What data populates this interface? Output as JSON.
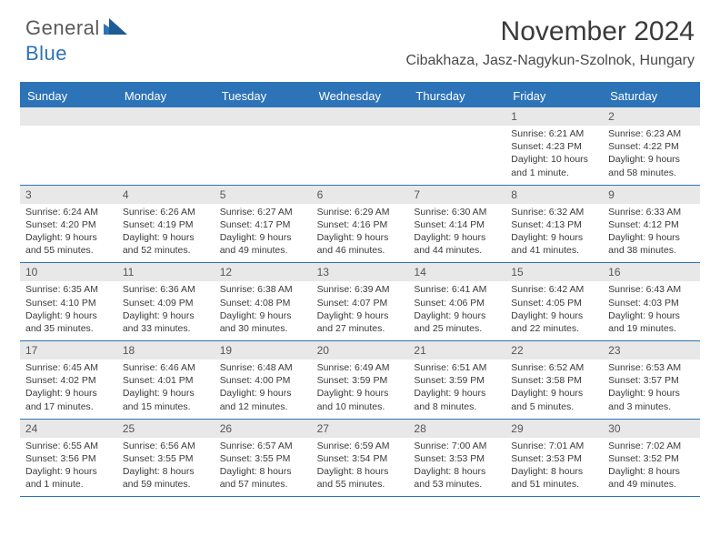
{
  "logo": {
    "text1": "General",
    "text2": "Blue"
  },
  "title": "November 2024",
  "location": "Cibakhaza, Jasz-Nagykun-Szolnok, Hungary",
  "colors": {
    "accent": "#2d73b8",
    "header_bg": "#2d73b8",
    "header_text": "#ffffff",
    "daynum_bg": "#e8e8e8",
    "daynum_text": "#555555",
    "body_text": "#3a3a3a",
    "page_bg": "#ffffff"
  },
  "day_names": [
    "Sunday",
    "Monday",
    "Tuesday",
    "Wednesday",
    "Thursday",
    "Friday",
    "Saturday"
  ],
  "weeks": [
    [
      {
        "day": "",
        "sunrise": "",
        "sunset": "",
        "daylight": ""
      },
      {
        "day": "",
        "sunrise": "",
        "sunset": "",
        "daylight": ""
      },
      {
        "day": "",
        "sunrise": "",
        "sunset": "",
        "daylight": ""
      },
      {
        "day": "",
        "sunrise": "",
        "sunset": "",
        "daylight": ""
      },
      {
        "day": "",
        "sunrise": "",
        "sunset": "",
        "daylight": ""
      },
      {
        "day": "1",
        "sunrise": "Sunrise: 6:21 AM",
        "sunset": "Sunset: 4:23 PM",
        "daylight": "Daylight: 10 hours and 1 minute."
      },
      {
        "day": "2",
        "sunrise": "Sunrise: 6:23 AM",
        "sunset": "Sunset: 4:22 PM",
        "daylight": "Daylight: 9 hours and 58 minutes."
      }
    ],
    [
      {
        "day": "3",
        "sunrise": "Sunrise: 6:24 AM",
        "sunset": "Sunset: 4:20 PM",
        "daylight": "Daylight: 9 hours and 55 minutes."
      },
      {
        "day": "4",
        "sunrise": "Sunrise: 6:26 AM",
        "sunset": "Sunset: 4:19 PM",
        "daylight": "Daylight: 9 hours and 52 minutes."
      },
      {
        "day": "5",
        "sunrise": "Sunrise: 6:27 AM",
        "sunset": "Sunset: 4:17 PM",
        "daylight": "Daylight: 9 hours and 49 minutes."
      },
      {
        "day": "6",
        "sunrise": "Sunrise: 6:29 AM",
        "sunset": "Sunset: 4:16 PM",
        "daylight": "Daylight: 9 hours and 46 minutes."
      },
      {
        "day": "7",
        "sunrise": "Sunrise: 6:30 AM",
        "sunset": "Sunset: 4:14 PM",
        "daylight": "Daylight: 9 hours and 44 minutes."
      },
      {
        "day": "8",
        "sunrise": "Sunrise: 6:32 AM",
        "sunset": "Sunset: 4:13 PM",
        "daylight": "Daylight: 9 hours and 41 minutes."
      },
      {
        "day": "9",
        "sunrise": "Sunrise: 6:33 AM",
        "sunset": "Sunset: 4:12 PM",
        "daylight": "Daylight: 9 hours and 38 minutes."
      }
    ],
    [
      {
        "day": "10",
        "sunrise": "Sunrise: 6:35 AM",
        "sunset": "Sunset: 4:10 PM",
        "daylight": "Daylight: 9 hours and 35 minutes."
      },
      {
        "day": "11",
        "sunrise": "Sunrise: 6:36 AM",
        "sunset": "Sunset: 4:09 PM",
        "daylight": "Daylight: 9 hours and 33 minutes."
      },
      {
        "day": "12",
        "sunrise": "Sunrise: 6:38 AM",
        "sunset": "Sunset: 4:08 PM",
        "daylight": "Daylight: 9 hours and 30 minutes."
      },
      {
        "day": "13",
        "sunrise": "Sunrise: 6:39 AM",
        "sunset": "Sunset: 4:07 PM",
        "daylight": "Daylight: 9 hours and 27 minutes."
      },
      {
        "day": "14",
        "sunrise": "Sunrise: 6:41 AM",
        "sunset": "Sunset: 4:06 PM",
        "daylight": "Daylight: 9 hours and 25 minutes."
      },
      {
        "day": "15",
        "sunrise": "Sunrise: 6:42 AM",
        "sunset": "Sunset: 4:05 PM",
        "daylight": "Daylight: 9 hours and 22 minutes."
      },
      {
        "day": "16",
        "sunrise": "Sunrise: 6:43 AM",
        "sunset": "Sunset: 4:03 PM",
        "daylight": "Daylight: 9 hours and 19 minutes."
      }
    ],
    [
      {
        "day": "17",
        "sunrise": "Sunrise: 6:45 AM",
        "sunset": "Sunset: 4:02 PM",
        "daylight": "Daylight: 9 hours and 17 minutes."
      },
      {
        "day": "18",
        "sunrise": "Sunrise: 6:46 AM",
        "sunset": "Sunset: 4:01 PM",
        "daylight": "Daylight: 9 hours and 15 minutes."
      },
      {
        "day": "19",
        "sunrise": "Sunrise: 6:48 AM",
        "sunset": "Sunset: 4:00 PM",
        "daylight": "Daylight: 9 hours and 12 minutes."
      },
      {
        "day": "20",
        "sunrise": "Sunrise: 6:49 AM",
        "sunset": "Sunset: 3:59 PM",
        "daylight": "Daylight: 9 hours and 10 minutes."
      },
      {
        "day": "21",
        "sunrise": "Sunrise: 6:51 AM",
        "sunset": "Sunset: 3:59 PM",
        "daylight": "Daylight: 9 hours and 8 minutes."
      },
      {
        "day": "22",
        "sunrise": "Sunrise: 6:52 AM",
        "sunset": "Sunset: 3:58 PM",
        "daylight": "Daylight: 9 hours and 5 minutes."
      },
      {
        "day": "23",
        "sunrise": "Sunrise: 6:53 AM",
        "sunset": "Sunset: 3:57 PM",
        "daylight": "Daylight: 9 hours and 3 minutes."
      }
    ],
    [
      {
        "day": "24",
        "sunrise": "Sunrise: 6:55 AM",
        "sunset": "Sunset: 3:56 PM",
        "daylight": "Daylight: 9 hours and 1 minute."
      },
      {
        "day": "25",
        "sunrise": "Sunrise: 6:56 AM",
        "sunset": "Sunset: 3:55 PM",
        "daylight": "Daylight: 8 hours and 59 minutes."
      },
      {
        "day": "26",
        "sunrise": "Sunrise: 6:57 AM",
        "sunset": "Sunset: 3:55 PM",
        "daylight": "Daylight: 8 hours and 57 minutes."
      },
      {
        "day": "27",
        "sunrise": "Sunrise: 6:59 AM",
        "sunset": "Sunset: 3:54 PM",
        "daylight": "Daylight: 8 hours and 55 minutes."
      },
      {
        "day": "28",
        "sunrise": "Sunrise: 7:00 AM",
        "sunset": "Sunset: 3:53 PM",
        "daylight": "Daylight: 8 hours and 53 minutes."
      },
      {
        "day": "29",
        "sunrise": "Sunrise: 7:01 AM",
        "sunset": "Sunset: 3:53 PM",
        "daylight": "Daylight: 8 hours and 51 minutes."
      },
      {
        "day": "30",
        "sunrise": "Sunrise: 7:02 AM",
        "sunset": "Sunset: 3:52 PM",
        "daylight": "Daylight: 8 hours and 49 minutes."
      }
    ]
  ]
}
